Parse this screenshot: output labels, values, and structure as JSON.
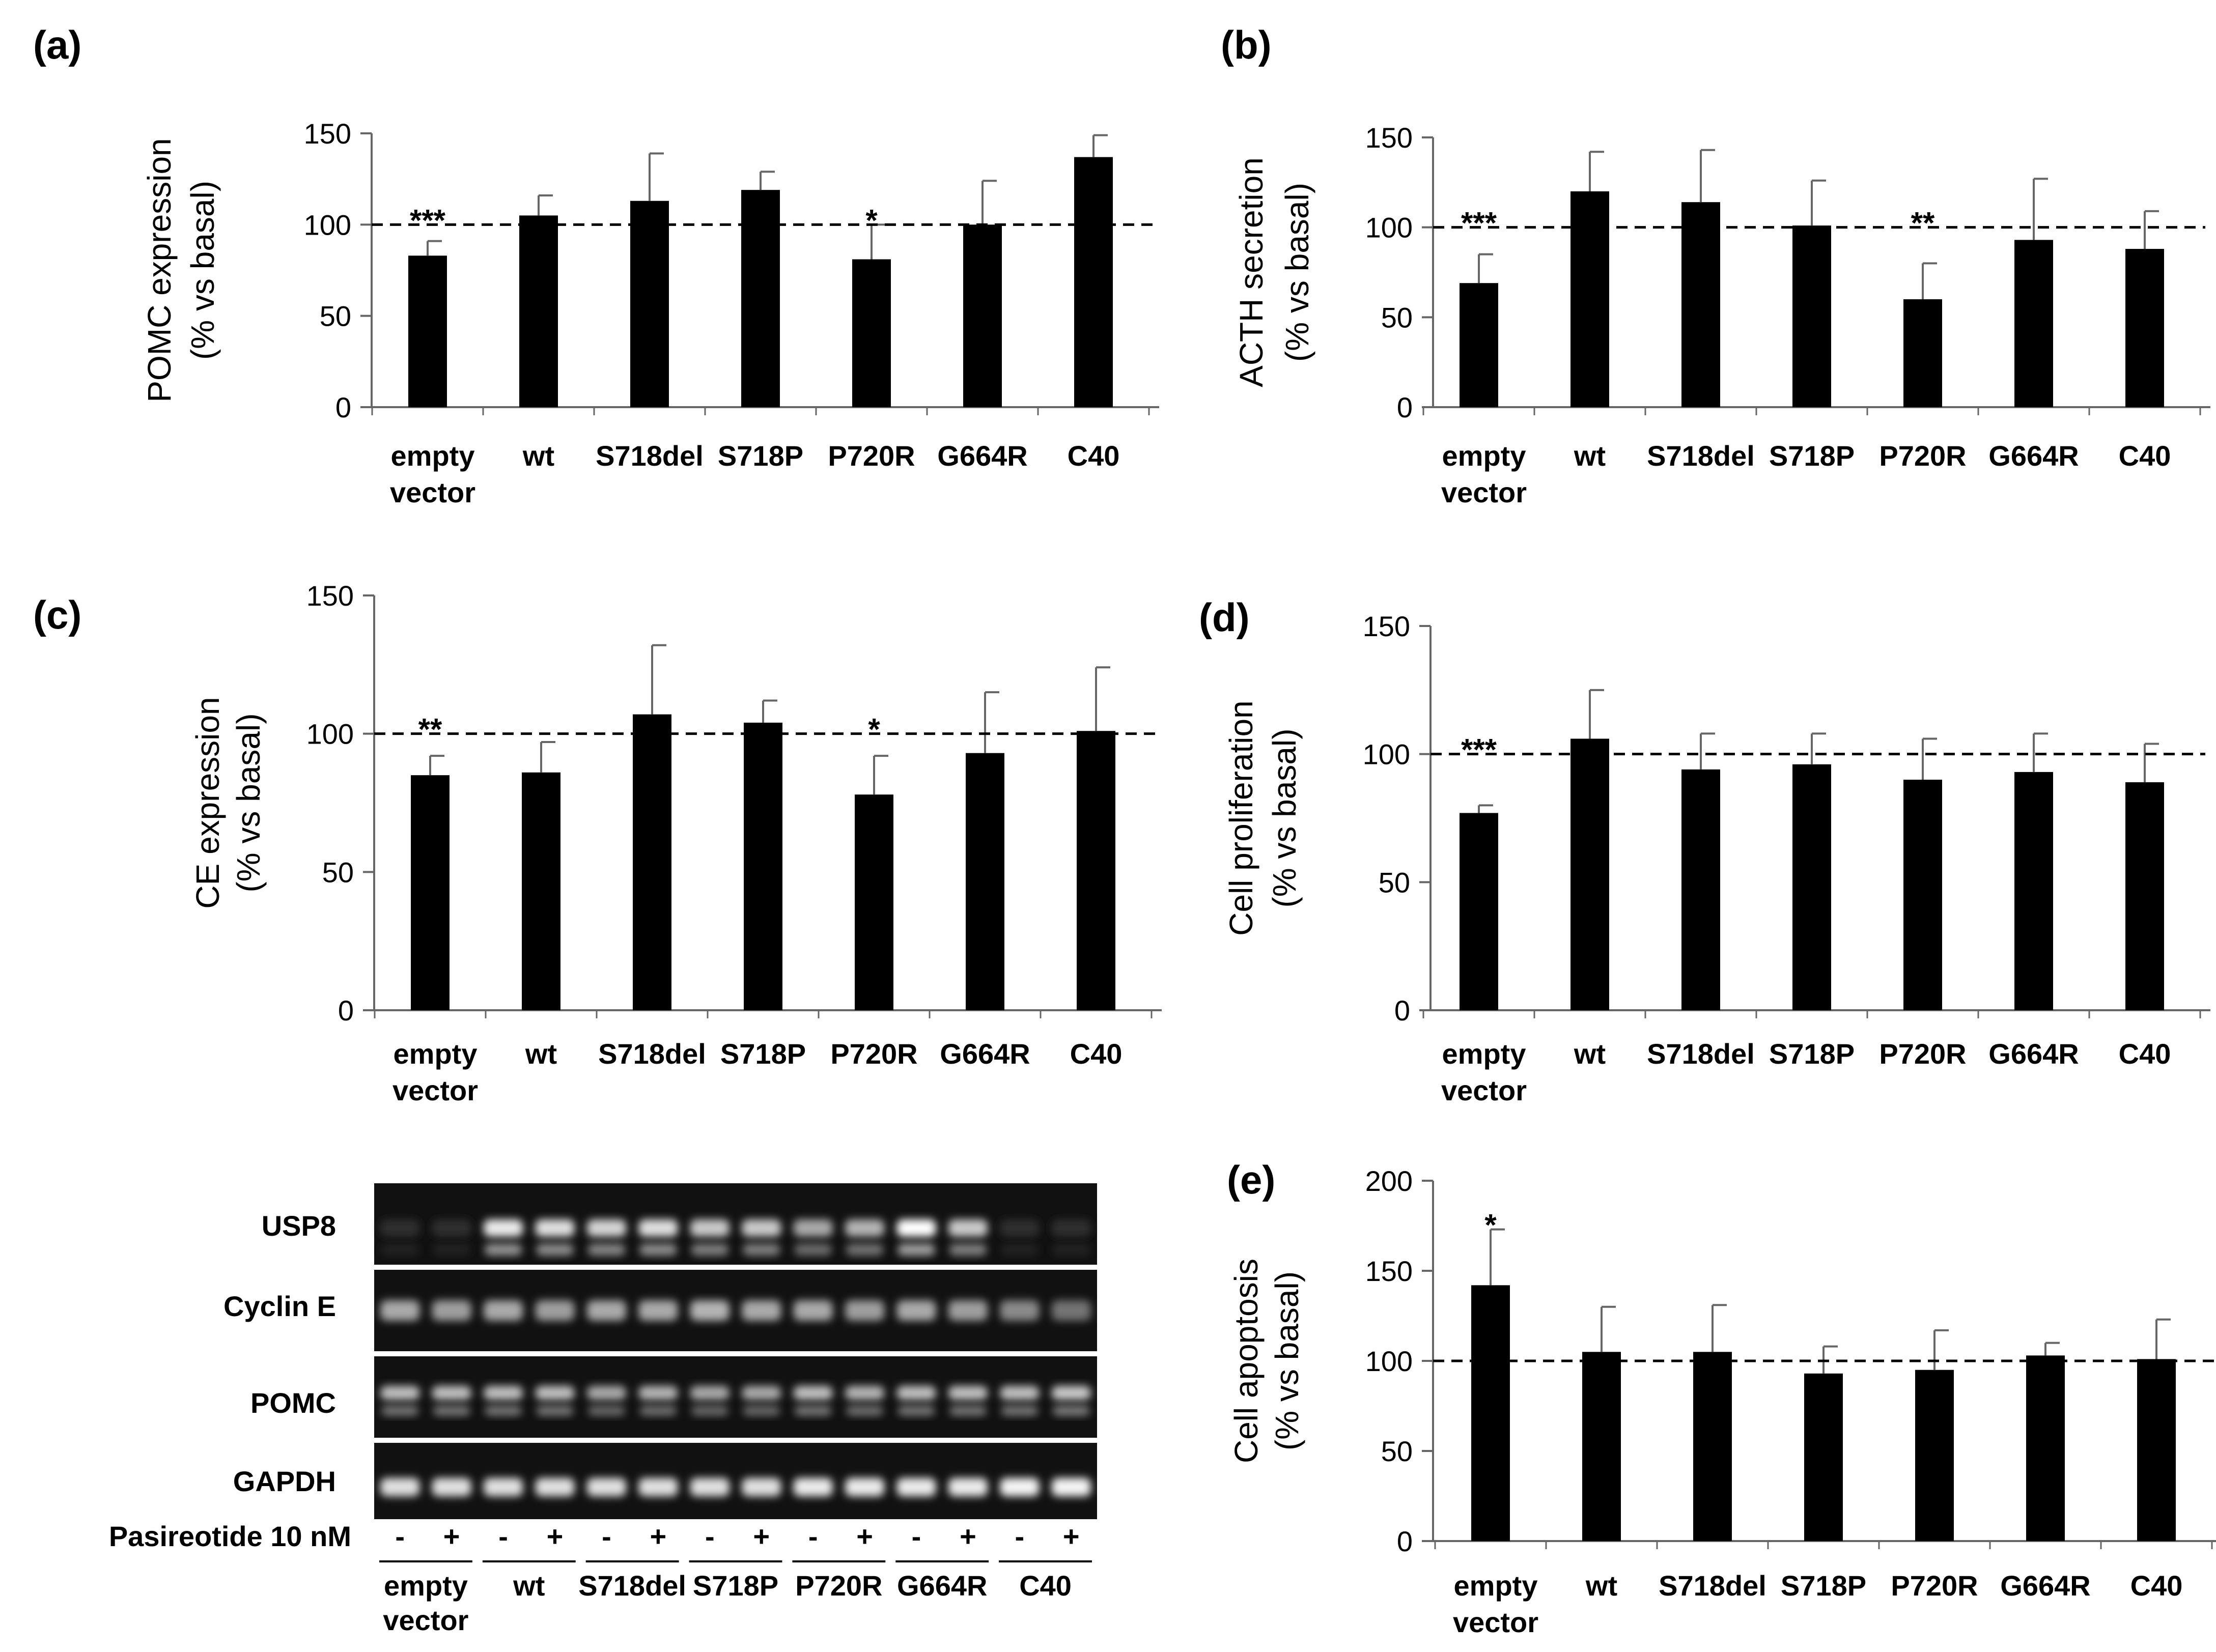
{
  "chart_data": [
    {
      "panel": "(a)",
      "type": "bar",
      "ylabel_line1": "POMC expression",
      "ylabel_line2": "(% vs basal)",
      "categories": [
        [
          "empty",
          "vector"
        ],
        [
          "wt"
        ],
        [
          "S718del"
        ],
        [
          "S718P"
        ],
        [
          "P720R"
        ],
        [
          "G664R"
        ],
        [
          "C40"
        ]
      ],
      "values": [
        83,
        105,
        113,
        119,
        81,
        100,
        137
      ],
      "errors": [
        8,
        11,
        26,
        10,
        19,
        24,
        12
      ],
      "significance": [
        "***",
        "",
        "",
        "",
        "*",
        "",
        ""
      ],
      "ylim": [
        0,
        150
      ],
      "yticks": [
        0,
        50,
        100,
        150
      ],
      "reference_line": 100
    },
    {
      "panel": "(b)",
      "type": "bar",
      "ylabel_line1": "ACTH secretion",
      "ylabel_line2": "(% vs basal)",
      "categories": [
        [
          "empty",
          "vector"
        ],
        [
          "wt"
        ],
        [
          "S718del"
        ],
        [
          "S718P"
        ],
        [
          "P720R"
        ],
        [
          "G664R"
        ],
        [
          "C40"
        ]
      ],
      "values": [
        69,
        120,
        114,
        101,
        60,
        93,
        88
      ],
      "errors": [
        16,
        22,
        29,
        25,
        20,
        34,
        21
      ],
      "significance": [
        "***",
        "",
        "",
        "",
        "**",
        "",
        ""
      ],
      "ylim": [
        0,
        150
      ],
      "yticks": [
        0,
        50,
        100,
        150
      ],
      "reference_line": 100
    },
    {
      "panel": "(c)",
      "type": "bar",
      "ylabel_line1": "CE expression",
      "ylabel_line2": "(% vs basal)",
      "categories": [
        [
          "empty",
          "vector"
        ],
        [
          "wt"
        ],
        [
          "S718del"
        ],
        [
          "S718P"
        ],
        [
          "P720R"
        ],
        [
          "G664R"
        ],
        [
          "C40"
        ]
      ],
      "values": [
        85,
        86,
        107,
        104,
        78,
        93,
        101
      ],
      "errors": [
        7,
        11,
        25,
        8,
        14,
        22,
        23
      ],
      "significance": [
        "**",
        "",
        "",
        "",
        "*",
        "",
        ""
      ],
      "ylim": [
        0,
        150
      ],
      "yticks": [
        0,
        50,
        100,
        150
      ],
      "reference_line": 100
    },
    {
      "panel": "(d)",
      "type": "bar",
      "ylabel_line1": "Cell proliferation",
      "ylabel_line2": "(% vs basal)",
      "categories": [
        [
          "empty",
          "vector"
        ],
        [
          "wt"
        ],
        [
          "S718del"
        ],
        [
          "S718P"
        ],
        [
          "P720R"
        ],
        [
          "G664R"
        ],
        [
          "C40"
        ]
      ],
      "values": [
        77,
        106,
        94,
        96,
        90,
        93,
        89
      ],
      "errors": [
        3,
        19,
        14,
        12,
        16,
        15,
        15
      ],
      "significance": [
        "***",
        "",
        "",
        "",
        "",
        "",
        ""
      ],
      "ylim": [
        0,
        150
      ],
      "yticks": [
        0,
        50,
        100,
        150
      ],
      "reference_line": 100
    },
    {
      "panel": "(e)",
      "type": "bar",
      "ylabel_line1": "Cell apoptosis",
      "ylabel_line2": "(% vs basal)",
      "categories": [
        [
          "empty",
          "vector"
        ],
        [
          "wt"
        ],
        [
          "S718del"
        ],
        [
          "S718P"
        ],
        [
          "P720R"
        ],
        [
          "G664R"
        ],
        [
          "C40"
        ]
      ],
      "values": [
        142,
        105,
        105,
        93,
        95,
        103,
        101
      ],
      "errors": [
        31,
        25,
        26,
        15,
        22,
        7,
        22
      ],
      "significance": [
        "*",
        "",
        "",
        "",
        "",
        "",
        ""
      ],
      "ylim": [
        0,
        200
      ],
      "yticks": [
        0,
        50,
        100,
        150,
        200
      ],
      "reference_line": 100
    }
  ],
  "western_blot": {
    "rows": [
      "USP8",
      "Cyclin E",
      "POMC",
      "GAPDH"
    ],
    "treatment_label": "Pasireotide 10 nM",
    "signs": [
      "-",
      "+",
      "-",
      "+",
      "-",
      "+",
      "-",
      "+",
      "-",
      "+",
      "-",
      "+",
      "-",
      "+"
    ],
    "groups": [
      [
        "empty",
        "vector"
      ],
      [
        "wt"
      ],
      [
        "S718del"
      ],
      [
        "S718P"
      ],
      [
        "P720R"
      ],
      [
        "G664R"
      ],
      [
        "C40"
      ]
    ],
    "usp8_intensity": [
      0.03,
      0.03,
      0.9,
      0.85,
      0.8,
      0.85,
      0.75,
      0.75,
      0.6,
      0.65,
      1.0,
      0.75,
      0.03,
      0.03
    ],
    "cycline_intensity": [
      0.6,
      0.55,
      0.6,
      0.55,
      0.6,
      0.6,
      0.65,
      0.6,
      0.6,
      0.55,
      0.6,
      0.55,
      0.45,
      0.35
    ],
    "pomc_intensity": [
      0.7,
      0.7,
      0.7,
      0.7,
      0.6,
      0.65,
      0.6,
      0.6,
      0.7,
      0.65,
      0.7,
      0.7,
      0.7,
      0.75
    ],
    "gapdh_intensity": [
      0.85,
      0.85,
      0.85,
      0.85,
      0.85,
      0.85,
      0.85,
      0.85,
      0.9,
      0.9,
      0.9,
      0.9,
      0.95,
      0.95
    ]
  }
}
